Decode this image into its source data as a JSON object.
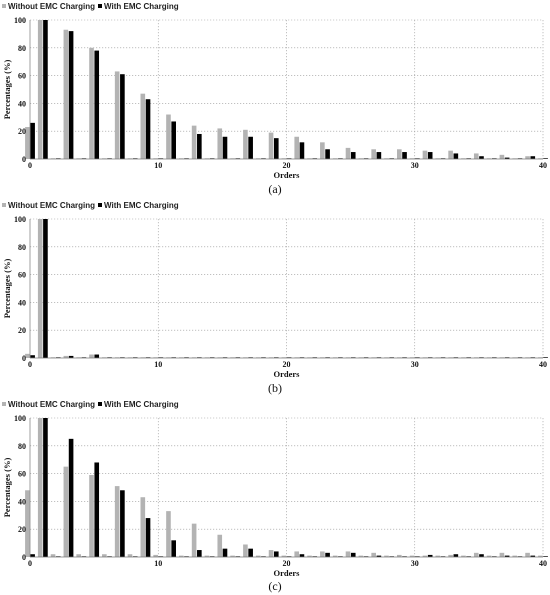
{
  "chart_data": [
    {
      "type": "bar",
      "caption": "(a)",
      "xlabel": "Orders",
      "ylabel": "Percentages (%)",
      "ylim": [
        0,
        100
      ],
      "xlim": [
        0,
        40
      ],
      "yticks": [
        0,
        20,
        40,
        60,
        80,
        100
      ],
      "xticks": [
        0,
        10,
        20,
        30,
        40
      ],
      "grid": true,
      "legend_position": "top-left",
      "x": [
        0,
        1,
        2,
        3,
        4,
        5,
        6,
        7,
        8,
        9,
        10,
        11,
        12,
        13,
        14,
        15,
        16,
        17,
        18,
        19,
        20,
        21,
        22,
        23,
        24,
        25,
        26,
        27,
        28,
        29,
        30,
        31,
        32,
        33,
        34,
        35,
        36,
        37,
        38,
        39,
        40
      ],
      "series": [
        {
          "name": "Without EMC Charging",
          "color": "#b3b3b3",
          "values": [
            23,
            100,
            0.5,
            93,
            0.5,
            80,
            0.5,
            63,
            0.5,
            47,
            0.5,
            32,
            0.5,
            24,
            0.5,
            22,
            0.5,
            21,
            0.5,
            19,
            0.5,
            16,
            0.5,
            12,
            0.5,
            8,
            0.5,
            7,
            0.5,
            7,
            0.5,
            6,
            0.5,
            6,
            0.5,
            4,
            0.5,
            3,
            0.5,
            2,
            0.5
          ]
        },
        {
          "name": "With EMC Charging",
          "color": "#000000",
          "values": [
            26,
            100,
            0.5,
            92,
            0.5,
            78,
            0.5,
            61,
            0.5,
            43,
            0.5,
            27,
            0.5,
            18,
            0.5,
            16,
            0.5,
            16,
            0.5,
            15,
            0.5,
            12,
            0.5,
            7,
            0.5,
            5,
            0.5,
            5,
            0.5,
            5,
            0.5,
            5,
            0.5,
            4,
            0.5,
            2,
            0.5,
            1,
            0.5,
            2,
            0.5
          ]
        }
      ]
    },
    {
      "type": "bar",
      "caption": "(b)",
      "xlabel": "Orders",
      "ylabel": "Percentages (%)",
      "ylim": [
        0,
        100
      ],
      "xlim": [
        0,
        40
      ],
      "yticks": [
        0,
        20,
        40,
        60,
        80,
        100
      ],
      "xticks": [
        0,
        10,
        20,
        30,
        40
      ],
      "grid": true,
      "legend_position": "top-left",
      "x": [
        0,
        1,
        2,
        3,
        4,
        5,
        6,
        7,
        8,
        9,
        10,
        11,
        12,
        13,
        14,
        15,
        16,
        17,
        18,
        19,
        20,
        21,
        22,
        23,
        24,
        25,
        26,
        27,
        28,
        29,
        30,
        31,
        32,
        33,
        34,
        35,
        36,
        37,
        38,
        39,
        40
      ],
      "series": [
        {
          "name": "Without EMC Charging",
          "color": "#b3b3b3",
          "values": [
            3,
            100,
            0.5,
            1.5,
            0.5,
            2.5,
            0.5,
            0.5,
            0.5,
            0.5,
            0.5,
            0.5,
            0.5,
            0.5,
            0.5,
            0.5,
            0.5,
            0.5,
            0.5,
            0.5,
            0.5,
            0.5,
            0.5,
            0.5,
            0.5,
            0.5,
            0.5,
            0.5,
            0.5,
            0.5,
            0.5,
            0.5,
            0.5,
            0.5,
            0.5,
            0.5,
            0.5,
            0.5,
            0.5,
            0.5,
            0.5
          ]
        },
        {
          "name": "With EMC Charging",
          "color": "#000000",
          "values": [
            2,
            100,
            0.5,
            1.5,
            0.5,
            2.5,
            0.5,
            0.5,
            0.5,
            0.5,
            0.5,
            0.5,
            0.5,
            0.5,
            0.5,
            0.5,
            0.5,
            0.5,
            0.5,
            0.5,
            0.5,
            0.5,
            0.5,
            0.5,
            0.5,
            0.5,
            0.5,
            0.5,
            0.5,
            0.5,
            0.5,
            0.5,
            0.5,
            0.5,
            0.5,
            0.5,
            0.5,
            0.5,
            0.5,
            0.5,
            0.5
          ]
        }
      ]
    },
    {
      "type": "bar",
      "caption": "(c)",
      "xlabel": "Orders",
      "ylabel": "Percentages (%)",
      "ylim": [
        0,
        100
      ],
      "xlim": [
        0,
        40
      ],
      "yticks": [
        0,
        20,
        40,
        60,
        80,
        100
      ],
      "xticks": [
        0,
        10,
        20,
        30,
        40
      ],
      "grid": true,
      "legend_position": "top-left",
      "x": [
        0,
        1,
        2,
        3,
        4,
        5,
        6,
        7,
        8,
        9,
        10,
        11,
        12,
        13,
        14,
        15,
        16,
        17,
        18,
        19,
        20,
        21,
        22,
        23,
        24,
        25,
        26,
        27,
        28,
        29,
        30,
        31,
        32,
        33,
        34,
        35,
        36,
        37,
        38,
        39,
        40
      ],
      "series": [
        {
          "name": "Without EMC Charging",
          "color": "#b3b3b3",
          "values": [
            48,
            100,
            2,
            65,
            2,
            59,
            2,
            51,
            2,
            43,
            1.5,
            33,
            1,
            24,
            1,
            16,
            1,
            9,
            1,
            5,
            1,
            4,
            1,
            4,
            1,
            4,
            1,
            3,
            1,
            1.5,
            1,
            1,
            1,
            1.5,
            1,
            3,
            1,
            3,
            1,
            3,
            1
          ]
        },
        {
          "name": "With EMC Charging",
          "color": "#000000",
          "values": [
            2,
            100,
            0.5,
            85,
            0.5,
            68,
            0.5,
            48,
            0.5,
            28,
            0.5,
            12,
            0.5,
            5,
            0.5,
            6,
            0.5,
            6,
            0.5,
            4,
            0.5,
            2,
            0.5,
            3,
            0.5,
            3,
            0.5,
            1,
            0.5,
            0.5,
            0.5,
            1.5,
            0.5,
            2,
            0.5,
            2,
            0.5,
            1,
            0.5,
            1,
            0.5
          ]
        }
      ]
    }
  ]
}
